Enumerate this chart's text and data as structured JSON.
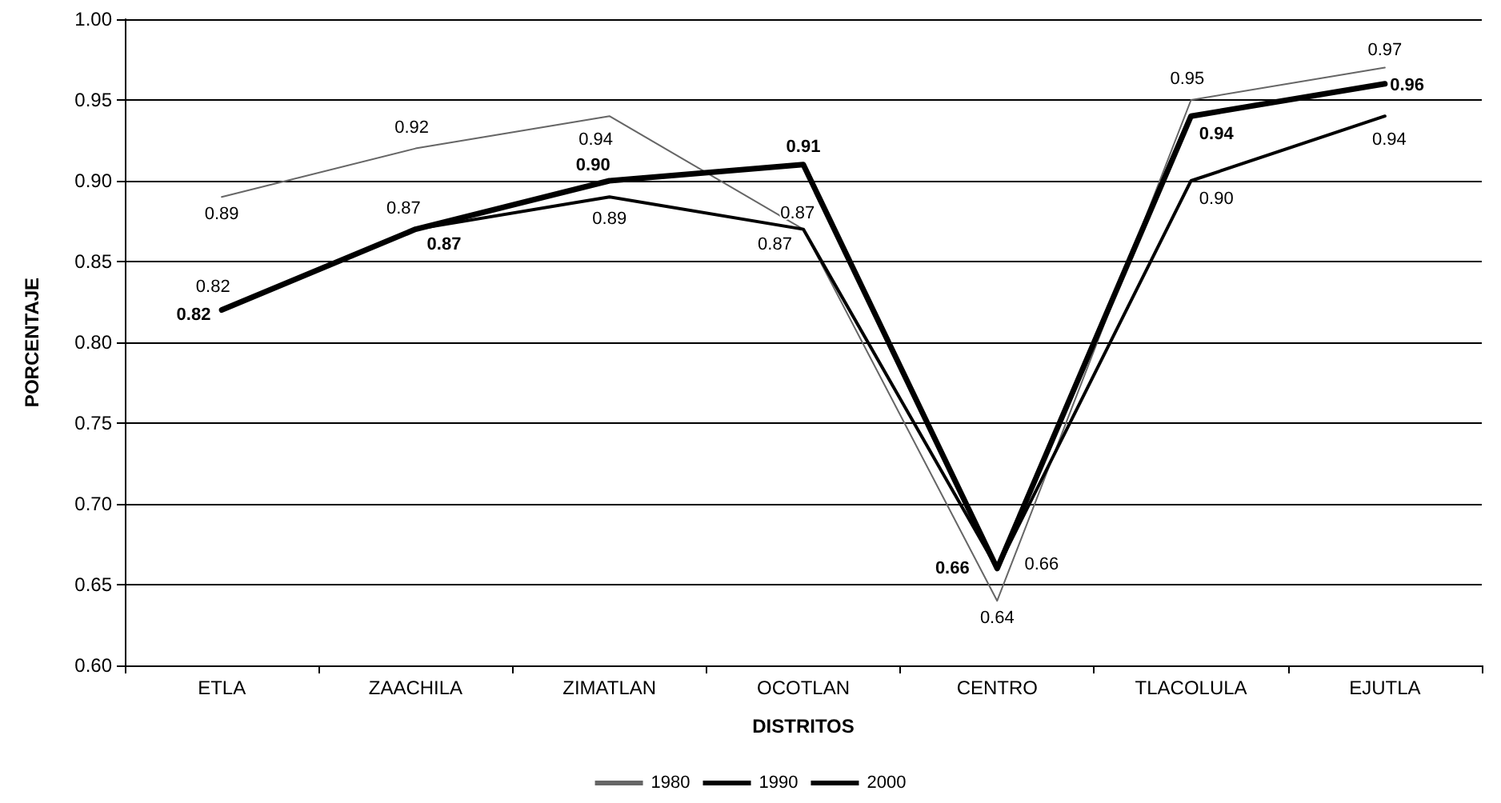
{
  "chart_data": {
    "type": "line",
    "xlabel": "DISTRITOS",
    "ylabel": "PORCENTAJE",
    "categories": [
      "ETLA",
      "ZAACHILA",
      "ZIMATLAN",
      "OCOTLAN",
      "CENTRO",
      "TLACOLULA",
      "EJUTLA"
    ],
    "series": [
      {
        "name": "1980",
        "color": "#666666",
        "values": [
          0.89,
          0.92,
          0.94,
          0.87,
          0.64,
          0.95,
          0.97
        ],
        "value_labels": [
          "0.89",
          "0.92",
          "0.94",
          "0.87",
          "0.64",
          "0.95",
          "0.97"
        ]
      },
      {
        "name": "1990",
        "color": "#000000",
        "values": [
          0.82,
          0.87,
          0.89,
          0.87,
          0.66,
          0.9,
          0.94
        ],
        "value_labels": [
          "0.82",
          "0.87",
          "0.89",
          "0.87",
          "0.66",
          "0.90",
          "0.94"
        ]
      },
      {
        "name": "2000",
        "color": "#000000",
        "values": [
          0.82,
          0.87,
          0.9,
          0.91,
          0.66,
          0.94,
          0.96
        ],
        "value_labels": [
          "0.82",
          "0.87",
          "0.90",
          "0.91",
          "0.66",
          "0.94",
          "0.96"
        ]
      }
    ],
    "ylim": [
      0.6,
      1.0
    ],
    "yticks": [
      {
        "value": 0.6,
        "label": "0.60"
      },
      {
        "value": 0.65,
        "label": "0.65"
      },
      {
        "value": 0.7,
        "label": "0.70"
      },
      {
        "value": 0.75,
        "label": "0.75"
      },
      {
        "value": 0.8,
        "label": "0.80"
      },
      {
        "value": 0.85,
        "label": "0.85"
      },
      {
        "value": 0.9,
        "label": "0.90"
      },
      {
        "value": 0.95,
        "label": "0.95"
      },
      {
        "value": 1.0,
        "label": "1.00"
      }
    ],
    "grid": "y",
    "legend": "bottom",
    "marker": "none",
    "line_style": "solid"
  }
}
